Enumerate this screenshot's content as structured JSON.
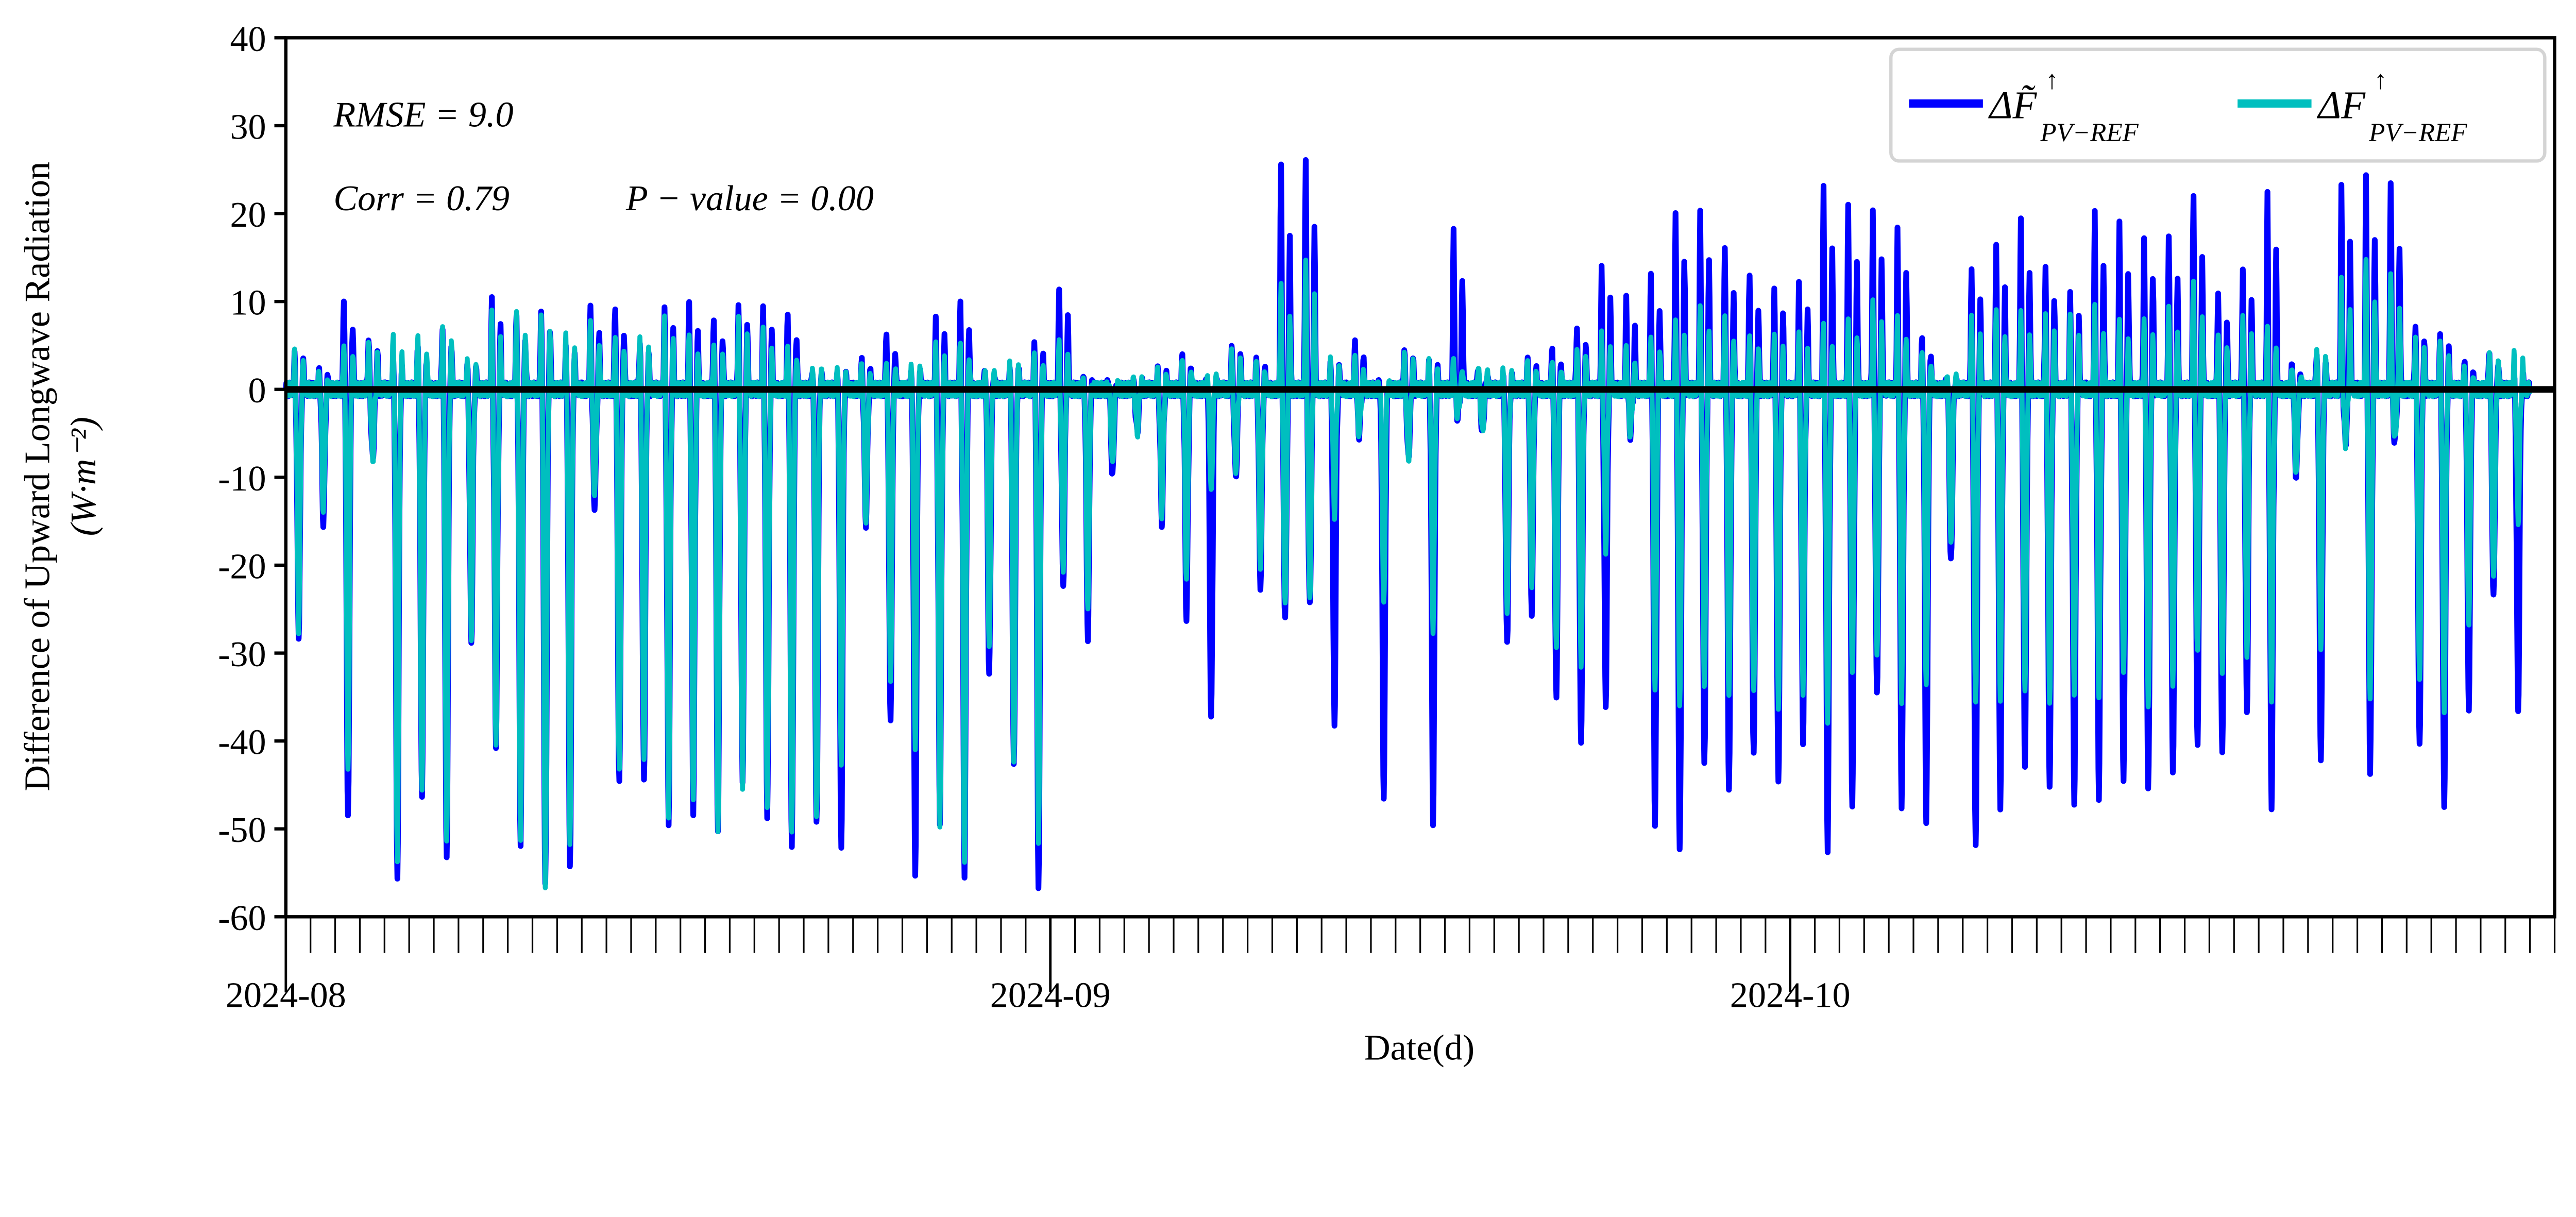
{
  "chart_data": {
    "type": "line",
    "xlabel": "Date(d)",
    "ylabel_line1": "Difference of Upward Longwave Radiation",
    "ylabel_line2": "(W·m⁻²)",
    "ylim": [
      -60,
      40
    ],
    "yticks": [
      "40",
      "30",
      "20",
      "10",
      "0",
      "-10",
      "-20",
      "-30",
      "-40",
      "-50",
      "-60"
    ],
    "xlim": [
      "2024-08-01",
      "2024-11-01"
    ],
    "xticks": [
      "2024-08",
      "2024-09",
      "2024-10"
    ],
    "minor_ticks": "daily",
    "grid": false,
    "zero_line": true,
    "legend_position": "top-right",
    "annotations": {
      "rmse": "RMSE = 9.0",
      "corr": "Corr = 0.79",
      "pvalue": "P − value = 0.00"
    },
    "series": [
      {
        "name": "ΔF̃↑ PV−REF",
        "color": "#0000ff",
        "daily": [
          {
            "month": "2024-08",
            "max": [
              4,
              2,
              11,
              6,
              3,
              5,
              8,
              3,
              10,
              9,
              10,
              5,
              9,
              10,
              6,
              9,
              10,
              9,
              10,
              9,
              9,
              3,
              2,
              3,
              7,
              3,
              8,
              10,
              3,
              3,
              5
            ],
            "min": [
              -28,
              -15,
              -49,
              -8,
              -55,
              -46,
              -54,
              -29,
              -40,
              -52,
              -57,
              -54,
              -13,
              -45,
              -45,
              -49,
              -48,
              -51,
              -45,
              -48,
              -52,
              -50,
              -52,
              -15,
              -38,
              -56,
              -49,
              -55,
              -33,
              -43,
              -56
            ]
          },
          {
            "month": "2024-09",
            "max": [
              11,
              1,
              1,
              1,
              2,
              4,
              2,
              5,
              3,
              26,
              27,
              3,
              5,
              1,
              5,
              3,
              18,
              3,
              2,
              3,
              5,
              8,
              14,
              10,
              14,
              21,
              20,
              16,
              14,
              12
            ],
            "min": [
              -22,
              -28,
              -10,
              -5,
              -15,
              -26,
              -38,
              -10,
              -22,
              -26,
              -25,
              -38,
              -5,
              -47,
              -8,
              -49,
              -3,
              -5,
              -29,
              -25,
              -35,
              -41,
              -36,
              -5,
              -50,
              -53,
              -42,
              -45,
              -42,
              -45
            ]
          },
          {
            "month": "2024-10",
            "max": [
              12,
              23,
              22,
              21,
              18,
              6,
              2,
              14,
              16,
              20,
              15,
              11,
              20,
              20,
              18,
              17,
              22,
              12,
              14,
              22,
              3,
              5,
              23,
              24,
              24,
              8,
              6,
              3,
              5,
              2
            ],
            "min": [
              -40,
              -52,
              -48,
              -35,
              -47,
              -49,
              -20,
              -52,
              -47,
              -43,
              -46,
              -47,
              -46,
              -45,
              -46,
              -43,
              -40,
              -42,
              -37,
              -47,
              -10,
              -43,
              -6,
              -43,
              -6,
              -41,
              -47,
              -36,
              -24,
              -37
            ]
          }
        ]
      },
      {
        "name": "ΔF↑ PV−REF",
        "color": "#00bfbf",
        "daily": [
          {
            "month": "2024-08",
            "max": [
              4,
              2,
              6,
              5,
              6,
              7,
              8,
              3,
              9,
              10,
              9,
              6,
              8,
              7,
              6,
              8,
              7,
              6,
              8,
              7,
              6,
              3,
              2,
              3,
              4,
              3,
              5,
              6,
              3,
              3,
              4
            ],
            "min": [
              -27,
              -14,
              -44,
              -8,
              -53,
              -46,
              -52,
              -28,
              -40,
              -52,
              -57,
              -51,
              -12,
              -44,
              -42,
              -48,
              -47,
              -51,
              -45,
              -47,
              -51,
              -49,
              -42,
              -15,
              -34,
              -41,
              -49,
              -54,
              -30,
              -42,
              -51
            ]
          },
          {
            "month": "2024-09",
            "max": [
              5,
              1,
              1,
              1,
              2,
              4,
              2,
              4,
              3,
              13,
              15,
              3,
              4,
              1,
              4,
              3,
              4,
              3,
              2,
              3,
              4,
              5,
              6,
              5,
              7,
              8,
              9,
              9,
              7,
              6
            ],
            "min": [
              -20,
              -25,
              -9,
              -5,
              -14,
              -22,
              -12,
              -9,
              -20,
              -25,
              -24,
              -14,
              -5,
              -25,
              -8,
              -27,
              -3,
              -5,
              -25,
              -22,
              -30,
              -32,
              -18,
              -5,
              -35,
              -36,
              -33,
              -35,
              -35,
              -36
            ]
          },
          {
            "month": "2024-10",
            "max": [
              6,
              8,
              9,
              10,
              8,
              5,
              2,
              8,
              9,
              10,
              9,
              8,
              10,
              9,
              8,
              9,
              13,
              7,
              8,
              7,
              3,
              5,
              12,
              15,
              14,
              6,
              5,
              3,
              5,
              4
            ],
            "min": [
              -34,
              -38,
              -33,
              -30,
              -35,
              -34,
              -18,
              -35,
              -35,
              -35,
              -36,
              -34,
              -35,
              -33,
              -36,
              -33,
              -30,
              -33,
              -30,
              -35,
              -10,
              -30,
              -6,
              -35,
              -6,
              -33,
              -36,
              -27,
              -22,
              -15
            ]
          }
        ]
      }
    ],
    "legend": {
      "item1": {
        "main": "ΔF̃",
        "sup": "↑",
        "sub": "PV−REF"
      },
      "item2": {
        "main": "ΔF",
        "sup": "↑",
        "sub": "PV−REF"
      }
    }
  }
}
